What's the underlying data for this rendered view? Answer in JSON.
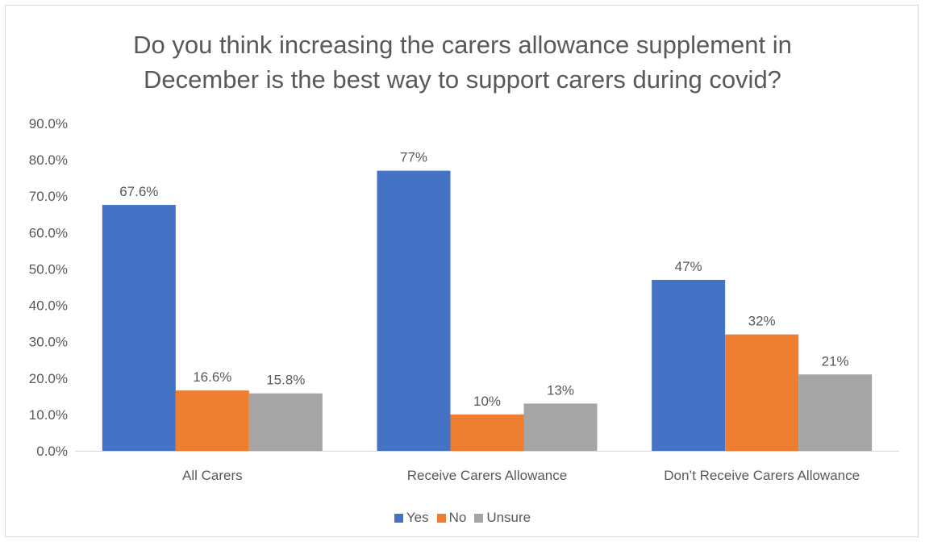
{
  "chart_data": {
    "type": "bar",
    "title_lines": [
      "Do you think increasing the carers allowance supplement in",
      "December is the best way to support carers during covid?"
    ],
    "categories": [
      "All Carers",
      "Receive Carers Allowance",
      "Don’t Receive Carers Allowance"
    ],
    "series": [
      {
        "name": "Yes",
        "color": "#4472C4",
        "values": [
          67.6,
          77,
          47
        ],
        "labels": [
          "67.6%",
          "77%",
          "47%"
        ]
      },
      {
        "name": "No",
        "color": "#ED7D31",
        "values": [
          16.6,
          10,
          32
        ],
        "labels": [
          "16.6%",
          "10%",
          "32%"
        ]
      },
      {
        "name": "Unsure",
        "color": "#A5A5A5",
        "values": [
          15.8,
          13,
          21
        ],
        "labels": [
          "15.8%",
          "13%",
          "21%"
        ]
      }
    ],
    "y_ticks": [
      "0.0%",
      "10.0%",
      "20.0%",
      "30.0%",
      "40.0%",
      "50.0%",
      "60.0%",
      "70.0%",
      "80.0%",
      "90.0%"
    ],
    "ylim": [
      0,
      90
    ],
    "grid": false,
    "legend_position": "bottom"
  }
}
